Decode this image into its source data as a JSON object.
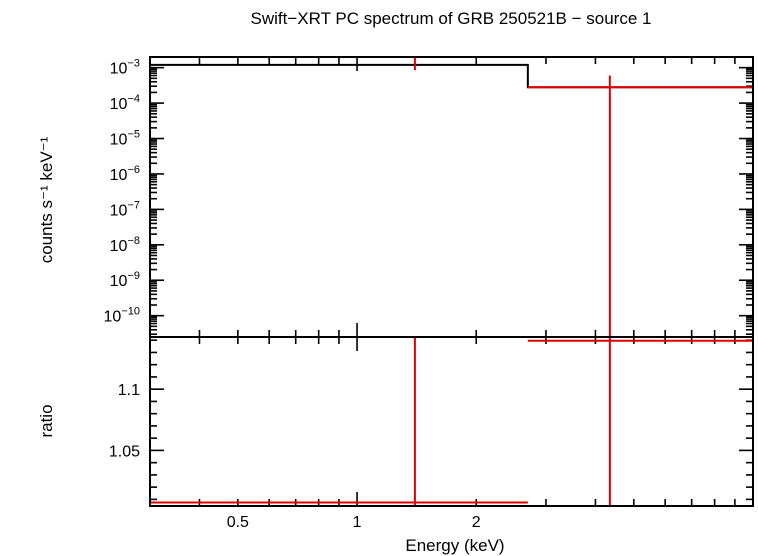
{
  "chart_data": {
    "title": "Swift−XRT PC spectrum of GRB 250521B − source 1",
    "xlabel": "Energy (keV)",
    "x_scale": "log",
    "xlim": [
      0.3,
      10
    ],
    "x_ticks": [
      {
        "value": 0.5,
        "label": "0.5"
      },
      {
        "value": 1,
        "label": "1"
      },
      {
        "value": 2,
        "label": "2"
      }
    ],
    "panels": [
      {
        "name": "spectrum",
        "type": "line",
        "ylabel": "counts s⁻¹ keV⁻¹",
        "y_scale": "log",
        "ylim": [
          2.5e-11,
          0.002
        ],
        "y_ticks": [
          {
            "value": 0.001,
            "base": "10",
            "exp": "−3"
          },
          {
            "value": 0.0001,
            "base": "10",
            "exp": "−4"
          },
          {
            "value": 1e-05,
            "base": "10",
            "exp": "−5"
          },
          {
            "value": 1e-06,
            "base": "10",
            "exp": "−6"
          },
          {
            "value": 1e-07,
            "base": "10",
            "exp": "−7"
          },
          {
            "value": 1e-08,
            "base": "10",
            "exp": "−8"
          },
          {
            "value": 1e-09,
            "base": "10",
            "exp": "−9"
          },
          {
            "value": 1e-10,
            "base": "10",
            "exp": "−10"
          }
        ],
        "model_steps": [
          {
            "x0": 0.3,
            "x1": 2.7,
            "y": 0.0012
          },
          {
            "x0": 2.7,
            "x1": 10,
            "y": 0.00028
          }
        ],
        "data_points": [
          {
            "x": 1.4,
            "y_low": 0.00085,
            "y_high": 0.002
          },
          {
            "x": 4.35,
            "xlo": 2.7,
            "xhi": 10,
            "y": 0.00028,
            "y_low": 2.5e-11,
            "y_high": 0.0006
          }
        ],
        "colors": {
          "model": "#000000",
          "data": "#e00000"
        }
      },
      {
        "name": "ratio",
        "type": "scatter",
        "ylabel": "ratio",
        "y_scale": "linear",
        "ylim": [
          1.0046,
          1.1426
        ],
        "y_ticks": [
          {
            "value": 1.05,
            "label": "1.05"
          },
          {
            "value": 1.1,
            "label": "1.1"
          }
        ],
        "data_points": [
          {
            "x": 1.4,
            "xlo": 0.3,
            "xhi": 2.7,
            "y": 1.0075,
            "y_low": 1.0046,
            "y_high": 1.1426
          },
          {
            "x": 4.35,
            "xlo": 2.7,
            "xhi": 10,
            "y": 1.1395,
            "y_low": 1.0046,
            "y_high": 1.1426
          }
        ],
        "colors": {
          "data": "#e00000"
        }
      }
    ]
  }
}
